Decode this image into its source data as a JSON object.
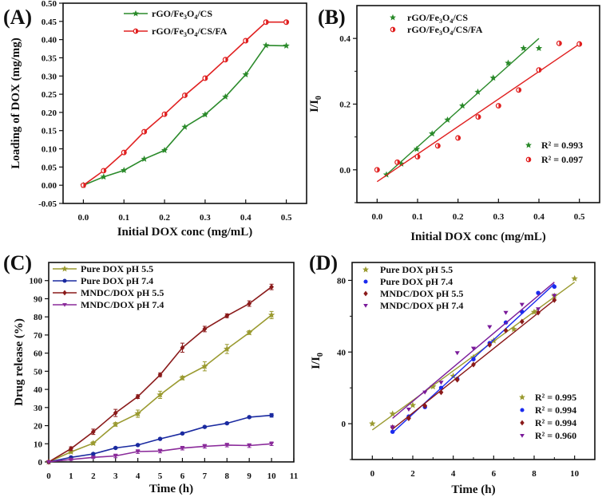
{
  "chart_data": [
    {
      "panel": "(A)",
      "type": "line",
      "xlabel": "Initial DOX conc (mg/mL)",
      "ylabel": "Loading of DOX (mg/mg)",
      "xlim": [
        -0.05,
        0.55
      ],
      "ylim": [
        -0.05,
        0.5
      ],
      "xticks": [
        "0.0",
        "0.1",
        "0.2",
        "0.3",
        "0.4",
        "0.5"
      ],
      "yticks": [
        "-0.05",
        "0.00",
        "0.05",
        "0.10",
        "0.15",
        "0.20",
        "0.25",
        "0.30",
        "0.35",
        "0.40",
        "0.45",
        "0.50"
      ],
      "legend_position": "top-center",
      "x": [
        0,
        0.05,
        0.1,
        0.15,
        0.2,
        0.25,
        0.3,
        0.35,
        0.4,
        0.45,
        0.5
      ],
      "series": [
        {
          "name": "rGO/Fe3O4/CS",
          "label_parts": [
            "rGO/Fe",
            "3",
            "O",
            "4",
            "/CS"
          ],
          "color": "#2a8a2a",
          "marker": "star",
          "values": [
            0,
            0.023,
            0.041,
            0.072,
            0.096,
            0.16,
            0.194,
            0.243,
            0.304,
            0.384,
            0.383
          ]
        },
        {
          "name": "rGO/Fe3O4/CS/FA",
          "label_parts": [
            "rGO/Fe",
            "3",
            "O",
            "4",
            "/CS/FA"
          ],
          "color": "#e02020",
          "marker": "half-circle",
          "values": [
            0,
            0.04,
            0.09,
            0.147,
            0.195,
            0.247,
            0.294,
            0.345,
            0.397,
            0.448,
            0.448
          ]
        }
      ]
    },
    {
      "panel": "(B)",
      "type": "scatter",
      "xlabel": "Initial DOX conc (mg/mL)",
      "ylabel": "I/I0",
      "xlim": [
        -0.05,
        0.55
      ],
      "ylim": [
        -0.1,
        0.5
      ],
      "xticks": [
        "0.0",
        "0.1",
        "0.2",
        "0.3",
        "0.4",
        "0.5"
      ],
      "yticks": [
        "0.0",
        "0.2",
        "0.4"
      ],
      "legend_position": "top-left",
      "series": [
        {
          "name": "rGO/Fe3O4/CS",
          "label_parts": [
            "rGO/Fe",
            "3",
            "O",
            "4",
            "/CS"
          ],
          "color": "#2a8a2a",
          "marker": "star",
          "x": [
            0.023,
            0.06,
            0.098,
            0.136,
            0.174,
            0.211,
            0.249,
            0.287,
            0.324,
            0.362,
            0.4
          ],
          "values": [
            -0.015,
            0.018,
            0.063,
            0.11,
            0.152,
            0.195,
            0.237,
            0.28,
            0.325,
            0.37,
            0.37
          ],
          "fit": {
            "x": [
              0.023,
              0.4
            ],
            "y": [
              -0.015,
              0.4
            ]
          },
          "r2": "R² = 0.993"
        },
        {
          "name": "rGO/Fe3O4/CS/FA",
          "label_parts": [
            "rGO/Fe",
            "3",
            "O",
            "4",
            "/CS/FA"
          ],
          "color": "#e02020",
          "marker": "half-circle",
          "x": [
            0,
            0.05,
            0.1,
            0.15,
            0.2,
            0.25,
            0.3,
            0.35,
            0.4,
            0.45,
            0.5
          ],
          "values": [
            0,
            0.023,
            0.04,
            0.073,
            0.097,
            0.161,
            0.195,
            0.243,
            0.304,
            0.385,
            0.383
          ],
          "fit": {
            "x": [
              0,
              0.5
            ],
            "y": [
              -0.036,
              0.383
            ]
          },
          "r2": "R² = 0.097"
        }
      ]
    },
    {
      "panel": "(C)",
      "type": "line",
      "xlabel": "Time (h)",
      "ylabel": "Drug release (%)",
      "xlim": [
        0,
        11
      ],
      "ylim": [
        0,
        110
      ],
      "xticks": [
        "0",
        "1",
        "2",
        "3",
        "4",
        "5",
        "6",
        "7",
        "8",
        "9",
        "10",
        "11"
      ],
      "yticks": [
        "0",
        "10",
        "20",
        "30",
        "40",
        "50",
        "60",
        "70",
        "80",
        "90",
        "100"
      ],
      "legend_position": "top-left",
      "x": [
        0,
        1,
        2,
        3,
        4,
        5,
        6,
        7,
        8,
        9,
        10
      ],
      "series": [
        {
          "name": "Pure DOX pH 5.5",
          "color": "#9a9a30",
          "marker": "star",
          "values": [
            0,
            5.5,
            10.3,
            20.7,
            26.6,
            37,
            46.3,
            52.7,
            62.3,
            71.3,
            81
          ],
          "errors": [
            0,
            0.5,
            0.8,
            1,
            2,
            2,
            1,
            2.5,
            2.5,
            1,
            2
          ]
        },
        {
          "name": "Pure DOX pH 7.4",
          "color": "#1a2aa0",
          "marker": "circle",
          "values": [
            0,
            2.5,
            4.4,
            7.7,
            9.3,
            12.7,
            15.7,
            19.3,
            21.3,
            24.7,
            25.7
          ],
          "errors": [
            0,
            0.5,
            0.5,
            0.5,
            0.5,
            0.5,
            0.5,
            0.5,
            0.5,
            0.5,
            1
          ]
        },
        {
          "name": "MNDC/DOX pH 5.5",
          "color": "#8a1a1a",
          "marker": "diamond",
          "values": [
            0,
            7.3,
            16.6,
            27,
            36,
            48,
            63,
            73.3,
            80.6,
            87.3,
            96.5
          ],
          "errors": [
            0,
            1,
            1.5,
            2,
            1,
            1,
            2.5,
            1.5,
            1,
            1.5,
            1.5
          ]
        },
        {
          "name": "MNDC/DOX pH 7.4",
          "color": "#8a2a9a",
          "marker": "triangle-down",
          "values": [
            0,
            1.3,
            2.5,
            3.3,
            5.7,
            6,
            7.6,
            8.6,
            9.3,
            9,
            10
          ],
          "errors": [
            0,
            0.5,
            0.5,
            1,
            1,
            1,
            1,
            1,
            1,
            1,
            1
          ]
        }
      ]
    },
    {
      "panel": "(D)",
      "type": "scatter",
      "xlabel": "Time (h)",
      "ylabel": "I/I0",
      "xlim": [
        -1,
        11
      ],
      "ylim": [
        -20,
        90
      ],
      "xticks": [
        "0",
        "2",
        "4",
        "6",
        "8",
        "10"
      ],
      "yticks": [
        "0",
        "40",
        "80"
      ],
      "legend_position": "top-left",
      "series": [
        {
          "name": "Pure DOX pH 5.5",
          "color": "#9a9a30",
          "marker": "star",
          "x": [
            0,
            1,
            2,
            3,
            4,
            5,
            6,
            7,
            8,
            9,
            10
          ],
          "values": [
            0,
            5.5,
            10.3,
            20.7,
            26.6,
            37,
            46.3,
            52.7,
            62.3,
            71.3,
            81
          ],
          "fit": {
            "x": [
              0,
              10
            ],
            "y": [
              -3.5,
              79
            ]
          },
          "r2": "R² = 0.995"
        },
        {
          "name": "Pure DOX pH 7.4",
          "color": "#1a2aee",
          "marker": "circle",
          "x": [
            1,
            1.8,
            2.6,
            3.4,
            4.2,
            5,
            5.8,
            6.6,
            7.4,
            8.2,
            9
          ],
          "values": [
            -4.5,
            4,
            9.3,
            20,
            25,
            36,
            45,
            56.5,
            62.5,
            73,
            76.5
          ],
          "fit": {
            "x": [
              1,
              9
            ],
            "y": [
              -5,
              78
            ]
          },
          "r2": "R² = 0.994"
        },
        {
          "name": "MNDC/DOX pH 5.5",
          "color": "#8a1a1a",
          "marker": "diamond",
          "x": [
            1,
            1.8,
            2.6,
            3.4,
            4.2,
            5,
            5.8,
            6.6,
            7.4,
            8.2,
            9
          ],
          "values": [
            -2,
            3,
            10,
            17.5,
            24.5,
            33,
            44,
            52,
            57,
            62,
            69
          ],
          "fit": {
            "x": [
              1,
              9
            ],
            "y": [
              -3,
              69
            ]
          },
          "r2": "R² = 0.994"
        },
        {
          "name": "MNDC/DOX pH 7.4",
          "color": "#7a1a9a",
          "marker": "triangle-down",
          "x": [
            1,
            1.8,
            2.6,
            3.4,
            4.2,
            5,
            5.8,
            6.6,
            7.4,
            8.2,
            9
          ],
          "values": [
            -2,
            8,
            17.5,
            23,
            39.5,
            42,
            54,
            62,
            66.5,
            64,
            71.5
          ],
          "fit": {
            "x": [
              1,
              9
            ],
            "y": [
              3,
              79
            ]
          },
          "r2": "R² = 0.960"
        }
      ]
    }
  ]
}
